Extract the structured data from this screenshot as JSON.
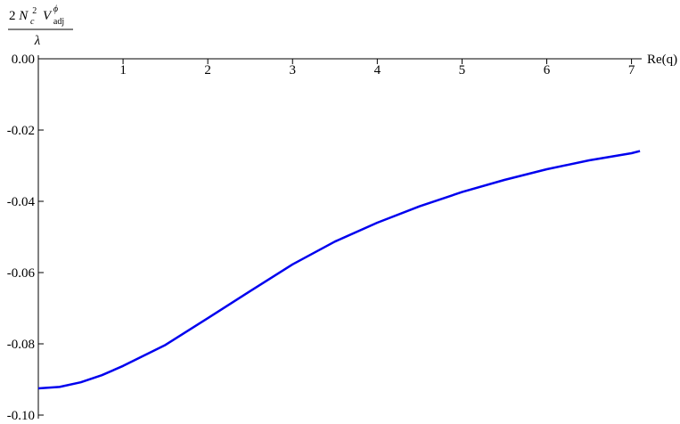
{
  "chart_data": {
    "type": "line",
    "y_label": {
      "numerator": [
        "2",
        "N",
        "c",
        "2",
        "V",
        "adj",
        "ϕ"
      ],
      "denominator": "λ"
    },
    "x_label": "Re(q)",
    "x": [
      0,
      0.25,
      0.5,
      0.75,
      1,
      1.5,
      2,
      2.5,
      3,
      3.5,
      4,
      4.5,
      5,
      5.5,
      6,
      6.5,
      7,
      7.1
    ],
    "series": [
      {
        "color": "#0000ee",
        "values": [
          -0.0925,
          -0.0921,
          -0.0908,
          -0.0888,
          -0.0862,
          -0.0803,
          -0.0728,
          -0.0652,
          -0.0577,
          -0.0513,
          -0.046,
          -0.0414,
          -0.0374,
          -0.034,
          -0.031,
          -0.0285,
          -0.0265,
          -0.0259
        ]
      }
    ],
    "xlim": [
      0,
      7.12
    ],
    "ylim": [
      -0.1,
      0
    ],
    "xticks": [
      1,
      2,
      3,
      4,
      5,
      6,
      7
    ],
    "yticks": [
      {
        "value": 0,
        "label": "0.00"
      },
      {
        "value": -0.02,
        "label": "-0.02"
      },
      {
        "value": -0.04,
        "label": "-0.04"
      },
      {
        "value": -0.06,
        "label": "-0.06"
      },
      {
        "value": -0.08,
        "label": "-0.08"
      },
      {
        "value": -0.1,
        "label": "-0.10"
      }
    ]
  }
}
